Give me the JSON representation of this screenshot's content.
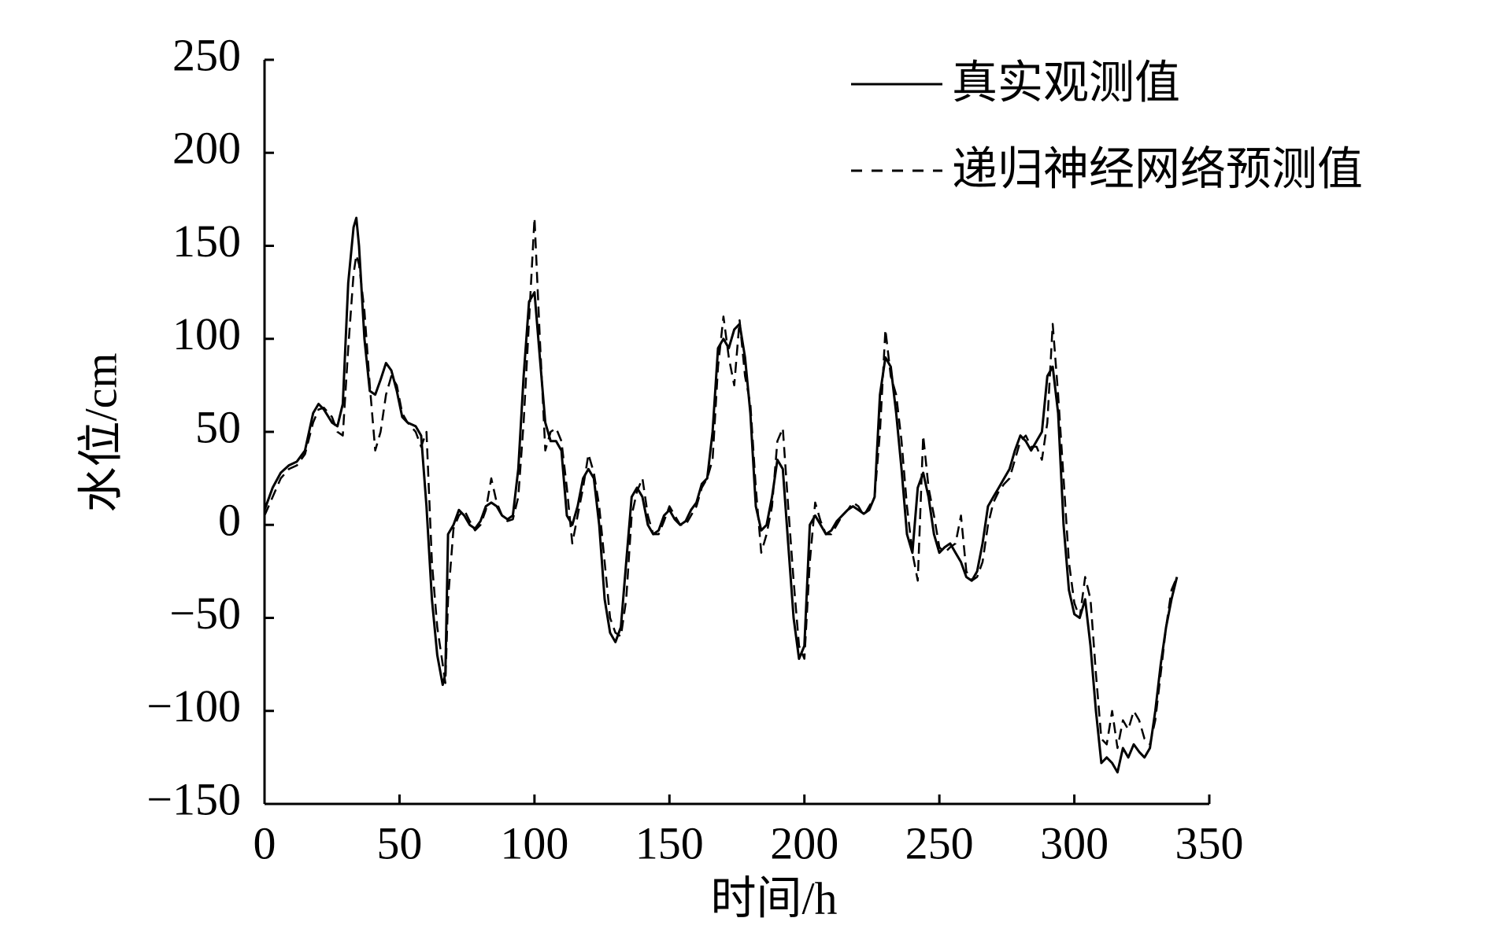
{
  "chart_data": {
    "type": "line",
    "xlabel": "时间/h",
    "ylabel": "水位/cm",
    "xlim": [
      0,
      350
    ],
    "xticks": [
      0,
      50,
      100,
      150,
      200,
      250,
      300,
      350
    ],
    "ylim": [
      -150,
      250
    ],
    "yticks": [
      {
        "value": -150,
        "label": "−150"
      },
      {
        "value": -100,
        "label": "−100"
      },
      {
        "value": -50,
        "label": "−50"
      },
      0,
      50,
      100,
      150,
      200,
      250
    ],
    "legend": "upper right",
    "x": [
      0,
      3,
      6,
      9,
      12,
      15,
      18,
      20,
      22,
      25,
      27,
      29,
      31,
      33,
      34,
      35,
      37,
      39,
      41,
      43,
      45,
      47,
      49,
      51,
      53,
      56,
      58,
      60,
      62,
      64,
      66,
      67,
      68,
      70,
      72,
      74,
      76,
      78,
      80,
      82,
      84,
      86,
      88,
      90,
      92,
      94,
      96,
      98,
      100,
      102,
      104,
      106,
      108,
      110,
      112,
      114,
      116,
      118,
      120,
      122,
      124,
      126,
      128,
      130,
      132,
      134,
      136,
      138,
      140,
      142,
      144,
      146,
      148,
      150,
      152,
      154,
      156,
      158,
      160,
      162,
      164,
      166,
      168,
      170,
      172,
      174,
      176,
      178,
      180,
      182,
      184,
      186,
      188,
      190,
      192,
      194,
      196,
      198,
      200,
      202,
      204,
      206,
      208,
      210,
      212,
      214,
      216,
      218,
      220,
      222,
      224,
      226,
      228,
      230,
      232,
      234,
      236,
      238,
      240,
      242,
      244,
      246,
      248,
      250,
      252,
      254,
      256,
      258,
      260,
      262,
      264,
      266,
      268,
      270,
      272,
      274,
      276,
      278,
      280,
      282,
      284,
      286,
      288,
      290,
      292,
      294,
      296,
      298,
      300,
      302,
      304,
      306,
      308,
      310,
      312,
      314,
      316,
      318,
      320,
      322,
      324,
      326,
      328,
      330,
      332,
      334,
      336,
      338
    ],
    "series": [
      {
        "name": "真实观测值",
        "color": "#000000",
        "dash": "solid",
        "values": [
          8,
          20,
          28,
          32,
          34,
          40,
          60,
          65,
          62,
          55,
          53,
          65,
          130,
          160,
          165,
          150,
          100,
          72,
          70,
          78,
          87,
          83,
          72,
          58,
          55,
          53,
          48,
          10,
          -40,
          -70,
          -86,
          -80,
          -5,
          0,
          8,
          5,
          0,
          -2,
          2,
          10,
          12,
          10,
          5,
          3,
          5,
          30,
          80,
          120,
          125,
          90,
          55,
          45,
          45,
          40,
          5,
          0,
          10,
          25,
          30,
          25,
          0,
          -40,
          -58,
          -63,
          -55,
          -20,
          15,
          20,
          15,
          0,
          -5,
          -3,
          5,
          8,
          3,
          0,
          2,
          8,
          12,
          22,
          25,
          50,
          95,
          100,
          95,
          105,
          108,
          90,
          60,
          10,
          -3,
          0,
          15,
          35,
          30,
          -10,
          -50,
          -72,
          -65,
          0,
          5,
          0,
          -5,
          -3,
          2,
          5,
          8,
          10,
          8,
          6,
          8,
          15,
          70,
          90,
          85,
          60,
          30,
          -5,
          -15,
          20,
          28,
          15,
          -5,
          -15,
          -12,
          -10,
          -15,
          -20,
          -28,
          -30,
          -25,
          -10,
          10,
          15,
          20,
          25,
          30,
          40,
          48,
          45,
          40,
          45,
          50,
          80,
          85,
          60,
          0,
          -35,
          -48,
          -50,
          -40,
          -65,
          -100,
          -128,
          -125,
          -128,
          -133,
          -120,
          -125,
          -118,
          -122,
          -125,
          -120,
          -100,
          -75,
          -55,
          -40,
          -28
        ]
      },
      {
        "name": "递归神经网络预测值",
        "color": "#000000",
        "dash": "dashed",
        "values": [
          5,
          15,
          25,
          30,
          32,
          38,
          55,
          62,
          63,
          58,
          50,
          48,
          95,
          135,
          145,
          140,
          115,
          75,
          40,
          50,
          70,
          80,
          75,
          60,
          55,
          50,
          42,
          50,
          -20,
          -55,
          -75,
          -85,
          -40,
          -2,
          5,
          8,
          2,
          -3,
          0,
          8,
          25,
          12,
          5,
          2,
          3,
          15,
          55,
          110,
          165,
          100,
          40,
          50,
          52,
          45,
          20,
          -10,
          5,
          20,
          38,
          28,
          10,
          -20,
          -50,
          -58,
          -60,
          -40,
          5,
          18,
          25,
          5,
          -5,
          -5,
          2,
          10,
          5,
          0,
          0,
          5,
          10,
          20,
          25,
          35,
          85,
          112,
          90,
          75,
          110,
          80,
          65,
          20,
          -15,
          -5,
          10,
          45,
          52,
          10,
          -30,
          -65,
          -72,
          -20,
          12,
          2,
          -5,
          -5,
          0,
          5,
          8,
          12,
          10,
          5,
          10,
          15,
          50,
          105,
          80,
          70,
          45,
          10,
          -15,
          -30,
          48,
          20,
          5,
          -12,
          -15,
          -12,
          -10,
          5,
          -25,
          -30,
          -28,
          -20,
          0,
          12,
          18,
          22,
          25,
          35,
          45,
          48,
          42,
          42,
          35,
          55,
          108,
          70,
          25,
          -20,
          -42,
          -50,
          -28,
          -40,
          -80,
          -115,
          -118,
          -100,
          -120,
          -105,
          -110,
          -100,
          -105,
          -115,
          -118,
          -105,
          -80,
          -55,
          -35,
          -28
        ]
      }
    ]
  }
}
